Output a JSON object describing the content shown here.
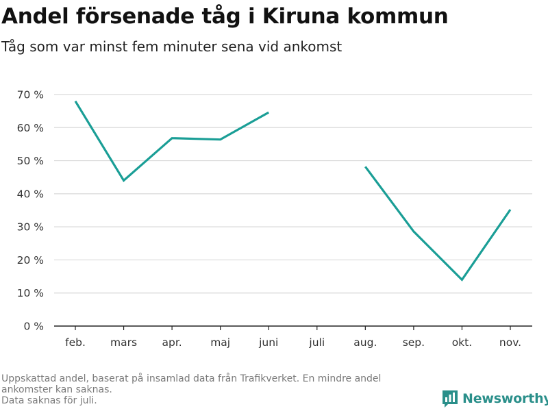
{
  "title": "Andel försenade tåg i Kiruna kommun",
  "subtitle": "Tåg som var minst fem minuter sena vid ankomst",
  "footnote": [
    "Uppskattad andel, baserat på insamlad data från Trafikverket. En mindre andel",
    "ankomster kan saknas.",
    "Data saknas för juli."
  ],
  "brand": {
    "name": "Newsworthy",
    "logo_icon": "bar-chart-logo-icon",
    "color": "#2a8f8a"
  },
  "chart_data": {
    "type": "line",
    "title": "Andel försenade tåg i Kiruna kommun",
    "subtitle": "Tåg som var minst fem minuter sena vid ankomst",
    "xlabel": "",
    "ylabel": "",
    "categories": [
      "feb.",
      "mars",
      "apr.",
      "maj",
      "juni",
      "juli",
      "aug.",
      "sep.",
      "okt.",
      "nov."
    ],
    "series": [
      {
        "color": "#1a9e96",
        "values": [
          68,
          44,
          56.8,
          56.4,
          64.6,
          null,
          48.2,
          28.6,
          14,
          35.2
        ]
      }
    ],
    "ylim": [
      0,
      70
    ],
    "yticks": [
      0,
      10,
      20,
      30,
      40,
      50,
      60,
      70
    ],
    "ytick_labels": [
      "0 %",
      "10 %",
      "20 %",
      "30 %",
      "40 %",
      "50 %",
      "60 %",
      "70 %"
    ],
    "grid": true,
    "gridline_color": "#d9d9d9",
    "axis_color": "#222222"
  }
}
